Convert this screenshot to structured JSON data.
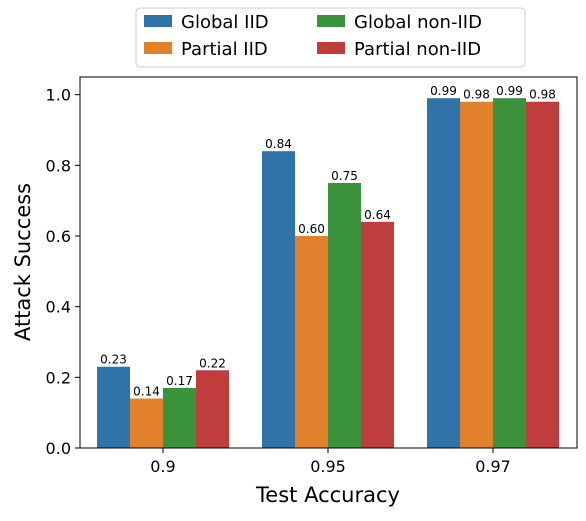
{
  "chart_data": {
    "type": "bar",
    "categories": [
      "0.9",
      "0.95",
      "0.97"
    ],
    "series": [
      {
        "name": "Global IID",
        "color": "#2f73a8",
        "values": [
          0.23,
          0.84,
          0.99
        ],
        "labels": [
          "0.23",
          "0.84",
          "0.99"
        ]
      },
      {
        "name": "Partial IID",
        "color": "#e1812c",
        "values": [
          0.14,
          0.6,
          0.98
        ],
        "labels": [
          "0.14",
          "0.60",
          "0.98"
        ]
      },
      {
        "name": "Global non-IID",
        "color": "#3a923a",
        "values": [
          0.17,
          0.75,
          0.99
        ],
        "labels": [
          "0.17",
          "0.75",
          "0.99"
        ]
      },
      {
        "name": "Partial non-IID",
        "color": "#c03d3e",
        "values": [
          0.22,
          0.64,
          0.98
        ],
        "labels": [
          "0.22",
          "0.64",
          "0.98"
        ]
      }
    ],
    "xlabel": "Test Accuracy",
    "ylabel": "Attack Success",
    "ylim": [
      0,
      1.05
    ],
    "yticks": [
      "0.0",
      "0.2",
      "0.4",
      "0.6",
      "0.8",
      "1.0"
    ],
    "grid": false,
    "legend_position": "top, above plot, two columns"
  }
}
